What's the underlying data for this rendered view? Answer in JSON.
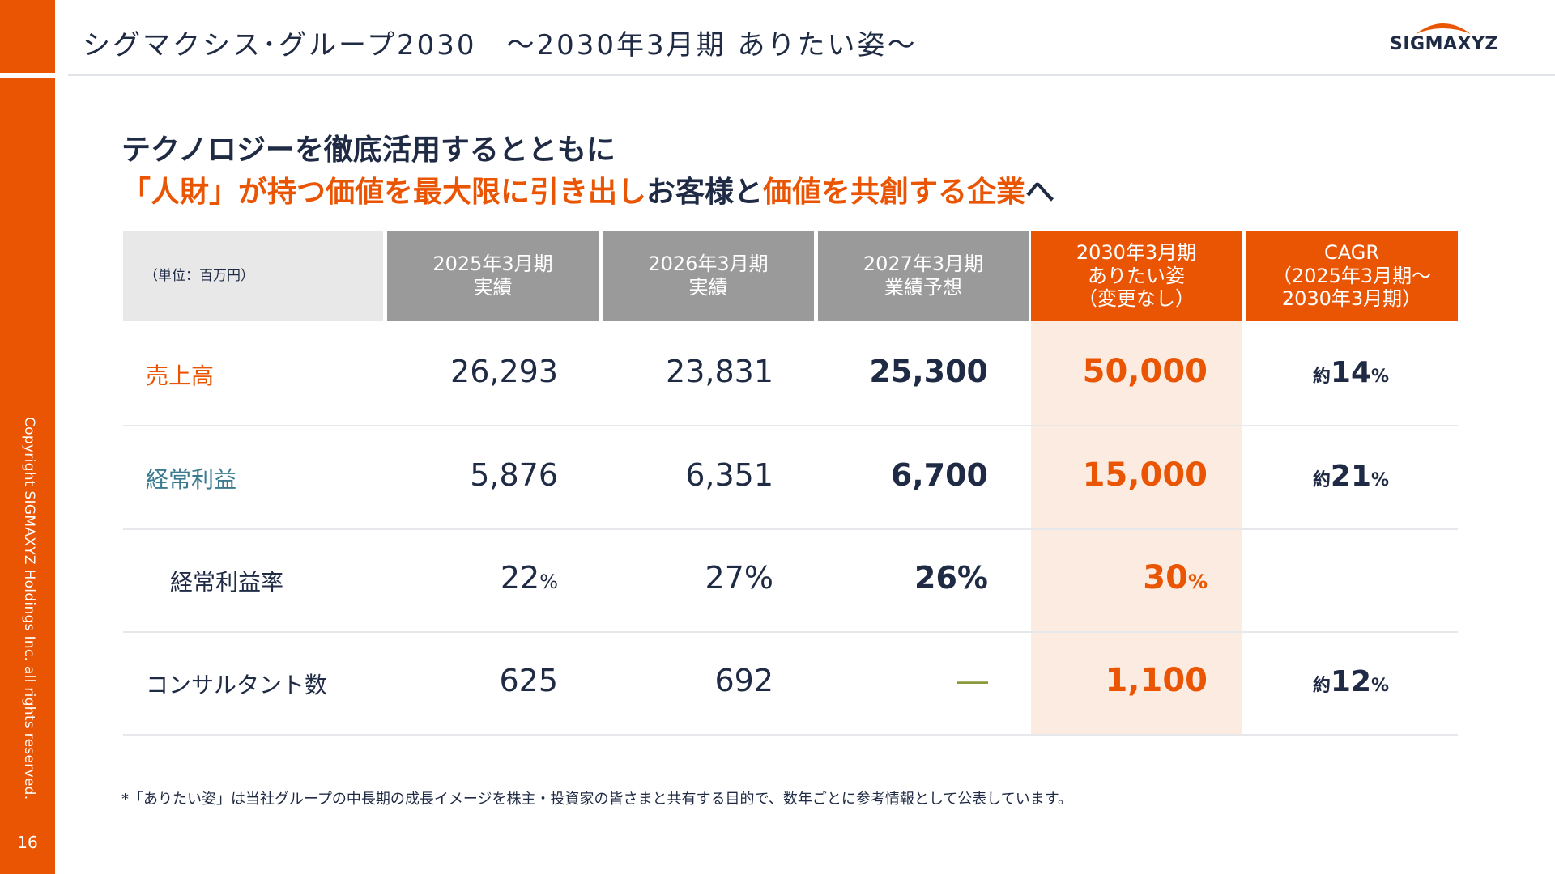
{
  "header": {
    "title": "シグマクシス･グループ2030　～2030年3月期 ありたい姿～",
    "logo_text": "SIGMAXYZ"
  },
  "tagline": {
    "line1": "テクノロジーを徹底活用するとともに",
    "line2_part1": "「人財」が持つ価値を最大限に引き出し",
    "line2_part2": "お客様と",
    "line2_part3": "価値を共創する企業",
    "line2_part4": "へ"
  },
  "table": {
    "unit_label": "（単位：百万円）",
    "columns": [
      {
        "line1": "2025年3月期",
        "line2": "実績"
      },
      {
        "line1": "2026年3月期",
        "line2": "実績"
      },
      {
        "line1": "2027年3月期",
        "line2": "業績予想"
      },
      {
        "line1": "2030年3月期",
        "line2": "ありたい姿",
        "line3": "（変更なし）"
      },
      {
        "line1": "CAGR",
        "line2": "（2025年3月期～",
        "line3": "2030年3月期）"
      }
    ],
    "rows": [
      {
        "label": "売上高",
        "v2025": "26,293",
        "v2026": "23,831",
        "v2027": "25,300",
        "v2030": "50,000",
        "cagr_prefix": "約",
        "cagr_value": "14",
        "cagr_suffix": "%"
      },
      {
        "label": "経常利益",
        "v2025": "5,876",
        "v2026": "6,351",
        "v2027": "6,700",
        "v2030": "15,000",
        "cagr_prefix": "約",
        "cagr_value": "21",
        "cagr_suffix": "%"
      },
      {
        "label": "経常利益率",
        "v2025": "22",
        "v2025_unit": "%",
        "v2026": "27%",
        "v2027": "26%",
        "v2030": "30",
        "v2030_unit": "%"
      },
      {
        "label": "コンサルタント数",
        "v2025": "625",
        "v2026": "692",
        "v2027": "―",
        "v2030": "1,100",
        "cagr_prefix": "約",
        "cagr_value": "12",
        "cagr_suffix": "%"
      }
    ]
  },
  "footnote": "*「ありたい姿」は当社グループの中長期の成長イメージを株主・投資家の皆さまと共有する目的で、数年ごとに参考情報として公表しています。",
  "sidebar": {
    "copyright": "Copyright SIGMAXYZ Holdings Inc. all rights reserved.",
    "page_number": "16"
  },
  "colors": {
    "accent": "#ea5504",
    "teal": "#3b7a8f",
    "header_gray": "#9a9a9a",
    "highlight_bg": "#fcebe1"
  }
}
